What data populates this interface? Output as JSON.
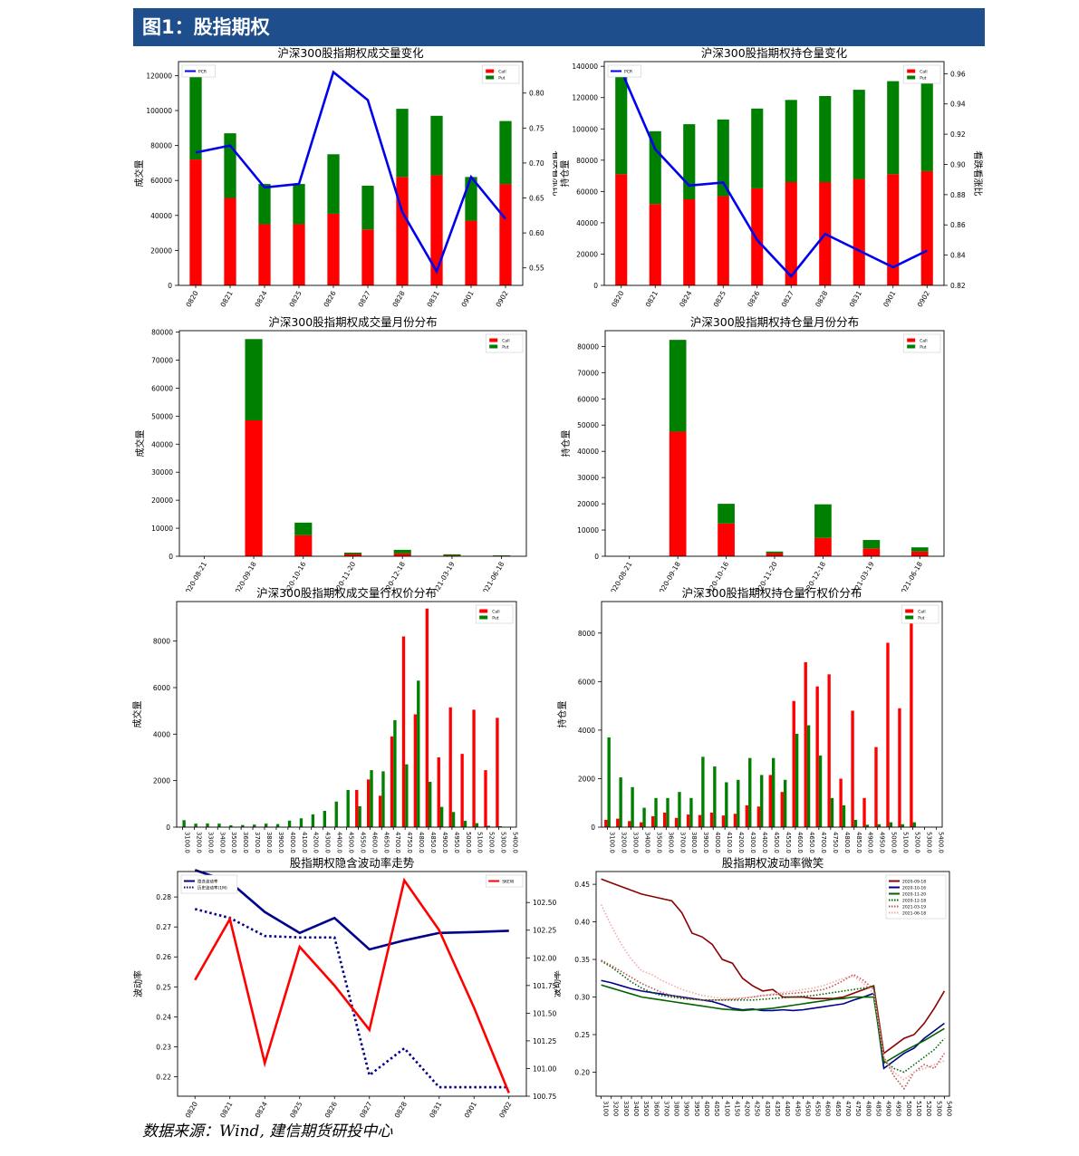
{
  "page": {
    "figure_title": "图1：股指期权",
    "source_note": "数据来源：Wind, 建信期货研投中心"
  },
  "colors": {
    "call": "#ff0000",
    "put": "#008000",
    "ratio": "#0000ee",
    "header_bg": "#1f4e8c"
  },
  "chart_data": [
    {
      "id": "volume_daily",
      "type": "bar",
      "stacked": true,
      "title": "沪深300股指期权成交量变化",
      "ylabel": "成交量",
      "y2label": "看跌看涨比",
      "categories": [
        "0820",
        "0821",
        "0824",
        "0825",
        "0826",
        "0827",
        "0828",
        "0831",
        "0901",
        "0902"
      ],
      "series": [
        {
          "name": "Call",
          "values": [
            72000,
            50000,
            35000,
            35000,
            41000,
            32000,
            62000,
            63000,
            37000,
            58000
          ]
        },
        {
          "name": "Put",
          "values": [
            51000,
            37000,
            23000,
            23000,
            34000,
            25000,
            39000,
            34000,
            25000,
            36000
          ]
        }
      ],
      "line": {
        "name": "PCR",
        "values": [
          0.715,
          0.725,
          0.665,
          0.67,
          0.83,
          0.79,
          0.63,
          0.545,
          0.68,
          0.62
        ]
      },
      "ylim": [
        0,
        128000
      ],
      "yticks": [
        0,
        20000,
        40000,
        60000,
        80000,
        100000,
        120000
      ],
      "y2lim": [
        0.525,
        0.845
      ],
      "y2ticks": [
        0.55,
        0.6,
        0.65,
        0.7,
        0.75,
        0.8
      ],
      "y2ticklabels": [
        "0.55",
        "0.60",
        "0.65",
        "0.70",
        "0.75",
        "0.80"
      ],
      "legend_left": [
        "PCR"
      ],
      "legend_right": [
        "Call",
        "Put"
      ]
    },
    {
      "id": "oi_daily",
      "type": "bar",
      "stacked": true,
      "title": "沪深300股指期权持仓量变化",
      "ylabel": "持仓量",
      "y2label": "看跌看涨比",
      "categories": [
        "0820",
        "0821",
        "0824",
        "0825",
        "0826",
        "0827",
        "0828",
        "0831",
        "0901",
        "0902"
      ],
      "series": [
        {
          "name": "Call",
          "values": [
            71000,
            52000,
            55000,
            57000,
            62000,
            66000,
            66000,
            68000,
            71000,
            73000
          ]
        },
        {
          "name": "Put",
          "values": [
            68000,
            46500,
            48000,
            49000,
            51000,
            52500,
            55000,
            57000,
            59500,
            60500
          ]
        }
      ],
      "line": {
        "name": "PCR",
        "values": [
          0.962,
          0.91,
          0.886,
          0.888,
          0.85,
          0.826,
          0.854,
          0.843,
          0.832,
          0.843
        ]
      },
      "ylim": [
        0,
        143000
      ],
      "yticks": [
        0,
        20000,
        40000,
        60000,
        80000,
        100000,
        120000,
        140000
      ],
      "y2lim": [
        0.82,
        0.968
      ],
      "y2ticks": [
        0.82,
        0.84,
        0.86,
        0.88,
        0.9,
        0.92,
        0.94,
        0.96
      ],
      "y2ticklabels": [
        "0.82",
        "0.84",
        "0.86",
        "0.88",
        "0.90",
        "0.92",
        "0.94",
        "0.96"
      ],
      "legend_left": [
        "PCR"
      ],
      "legend_right": [
        "Call",
        "Put"
      ]
    },
    {
      "id": "volume_monthly",
      "type": "bar",
      "stacked": true,
      "title": "沪深300股指期权成交量月份分布",
      "ylabel": "成交量",
      "categories": [
        "2020-08-21",
        "2020-09-18",
        "2020-10-16",
        "2020-11-20",
        "2020-12-18",
        "2021-03-19",
        "2021-06-18"
      ],
      "series": [
        {
          "name": "Call",
          "values": [
            0,
            48500,
            7500,
            800,
            1000,
            300,
            150
          ]
        },
        {
          "name": "Put",
          "values": [
            0,
            29000,
            4500,
            500,
            1300,
            400,
            150
          ]
        }
      ],
      "ylim": [
        0,
        80500
      ],
      "yticks": [
        0,
        10000,
        20000,
        30000,
        40000,
        50000,
        60000,
        70000,
        80000
      ],
      "legend_right": [
        "Call",
        "Put"
      ]
    },
    {
      "id": "oi_monthly",
      "type": "bar",
      "stacked": true,
      "title": "沪深300股指期权持仓量月份分布",
      "ylabel": "持仓量",
      "categories": [
        "2020-08-21",
        "2020-09-18",
        "2020-10-16",
        "2020-11-20",
        "2020-12-18",
        "2021-03-19",
        "2021-06-18"
      ],
      "series": [
        {
          "name": "Call",
          "values": [
            0,
            47500,
            12500,
            1200,
            7000,
            3000,
            1800
          ]
        },
        {
          "name": "Put",
          "values": [
            0,
            35000,
            7500,
            600,
            12800,
            3200,
            1600
          ]
        }
      ],
      "ylim": [
        0,
        86000
      ],
      "yticks": [
        0,
        10000,
        20000,
        30000,
        40000,
        50000,
        60000,
        70000,
        80000
      ],
      "legend_right": [
        "Call",
        "Put"
      ]
    },
    {
      "id": "volume_strike",
      "type": "bar",
      "stacked": false,
      "title": "沪深300股指期权成交量行权价分布",
      "ylabel": "成交量",
      "categories": [
        "3100.0",
        "3200.0",
        "3300.0",
        "3400.0",
        "3500.0",
        "3600.0",
        "3700.0",
        "3800.0",
        "3900.0",
        "4000.0",
        "4100.0",
        "4200.0",
        "4300.0",
        "4400.0",
        "4500.0",
        "4550.0",
        "4600.0",
        "4650.0",
        "4700.0",
        "4750.0",
        "4800.0",
        "4850.0",
        "4900.0",
        "4950.0",
        "5000.0",
        "5100.0",
        "5200.0",
        "5300.0",
        "5400.0"
      ],
      "series": [
        {
          "name": "Call",
          "values": [
            0,
            0,
            0,
            0,
            0,
            0,
            0,
            0,
            0,
            0,
            0,
            0,
            0,
            0,
            0,
            1600,
            2050,
            1350,
            3900,
            8200,
            4850,
            9400,
            3000,
            5150,
            3150,
            5050,
            2450,
            4700,
            0
          ]
        },
        {
          "name": "Put",
          "values": [
            300,
            150,
            160,
            150,
            80,
            90,
            110,
            150,
            130,
            280,
            380,
            550,
            700,
            1100,
            1600,
            900,
            2450,
            2400,
            4600,
            2700,
            6300,
            1950,
            870,
            650,
            270,
            170,
            60,
            40,
            0
          ]
        }
      ],
      "ylim": [
        0,
        9700
      ],
      "yticks": [
        0,
        2000,
        4000,
        6000,
        8000
      ],
      "legend_right": [
        "Call",
        "Put"
      ]
    },
    {
      "id": "oi_strike",
      "type": "bar",
      "stacked": false,
      "title": "沪深300股指期权持仓量行权价分布",
      "ylabel": "持仓量",
      "categories": [
        "3100.0",
        "3200.0",
        "3300.0",
        "3400.0",
        "3500.0",
        "3600.0",
        "3700.0",
        "3800.0",
        "3900.0",
        "4000.0",
        "4100.0",
        "4200.0",
        "4300.0",
        "4400.0",
        "4500.0",
        "4550.0",
        "4600.0",
        "4650.0",
        "4700.0",
        "4750.0",
        "4800.0",
        "4850.0",
        "4900.0",
        "4950.0",
        "5000.0",
        "5100.0",
        "5200.0",
        "5300.0",
        "5400.0"
      ],
      "series": [
        {
          "name": "Call",
          "values": [
            300,
            350,
            250,
            200,
            450,
            600,
            380,
            520,
            500,
            600,
            480,
            550,
            900,
            850,
            2150,
            1450,
            5200,
            6800,
            5800,
            6300,
            2000,
            4800,
            1200,
            3300,
            7600,
            4900,
            8800,
            0,
            0
          ]
        },
        {
          "name": "Put",
          "values": [
            3700,
            2050,
            1650,
            800,
            1200,
            1200,
            1450,
            1200,
            2900,
            2500,
            1850,
            1950,
            2850,
            2150,
            2850,
            1950,
            3850,
            4200,
            2950,
            1200,
            900,
            300,
            100,
            120,
            200,
            120,
            200,
            0,
            0
          ]
        }
      ],
      "ylim": [
        0,
        9300
      ],
      "yticks": [
        0,
        2000,
        4000,
        6000,
        8000
      ],
      "legend_right": [
        "Call",
        "Put"
      ]
    },
    {
      "id": "iv_trend",
      "type": "line",
      "title": "股指期权隐含波动率走势",
      "ylabel": "波动率",
      "y2label": "偏度",
      "categories": [
        "0820",
        "0821",
        "0824",
        "0825",
        "0826",
        "0827",
        "0828",
        "0831",
        "0901",
        "0902"
      ],
      "series": [
        {
          "name": "隐含波动率",
          "axis": "left",
          "style": "solid",
          "color": "#00008b",
          "values": [
            0.289,
            0.285,
            0.275,
            0.268,
            0.273,
            0.2625,
            0.2655,
            0.268,
            0.2683,
            0.2687
          ]
        },
        {
          "name": "历史波动率(1M)",
          "axis": "left",
          "style": "dotted",
          "color": "#00008b",
          "values": [
            0.276,
            0.273,
            0.267,
            0.2665,
            0.2665,
            0.2205,
            0.2295,
            0.2165,
            0.2165,
            0.2165
          ]
        },
        {
          "name": "SKEW",
          "axis": "right",
          "style": "solid",
          "color": "#ff0000",
          "values": [
            101.8,
            102.35,
            101.05,
            102.1,
            101.75,
            101.35,
            102.7,
            102.25,
            101.55,
            100.78
          ]
        }
      ],
      "ylim": [
        0.2135,
        0.2885
      ],
      "yticks": [
        0.22,
        0.23,
        0.24,
        0.25,
        0.26,
        0.27,
        0.28
      ],
      "y2lim": [
        100.75,
        102.78
      ],
      "y2ticks": [
        100.75,
        101.0,
        101.25,
        101.5,
        101.75,
        102.0,
        102.25,
        102.5
      ],
      "y2ticklabels": [
        "100.75",
        "101.00",
        "101.25",
        "101.50",
        "101.75",
        "102.00",
        "102.25",
        "102.50"
      ],
      "legend_left": [
        "隐含波动率",
        "历史波动率(1M)"
      ],
      "legend_right": [
        "SKEW"
      ]
    },
    {
      "id": "vol_smile",
      "type": "line",
      "title": "股指期权波动率微笑",
      "ylabel": "波动率",
      "categories": [
        "3100",
        "3200",
        "3300",
        "3400",
        "3500",
        "3600",
        "3700",
        "3800",
        "3900",
        "3950",
        "4000",
        "4050",
        "4100",
        "4150",
        "4200",
        "4250",
        "4300",
        "4350",
        "4400",
        "4450",
        "4500",
        "4550",
        "4600",
        "4650",
        "4700",
        "4750",
        "4800",
        "4850",
        "4900",
        "4950",
        "5000",
        "5100",
        "5200",
        "5300",
        "5400"
      ],
      "series": [
        {
          "name": "2020-09-18",
          "style": "solid",
          "color": "#8b0000",
          "values": [
            0.457,
            0.452,
            0.447,
            0.442,
            0.437,
            0.434,
            0.431,
            0.428,
            0.412,
            0.385,
            0.38,
            0.37,
            0.35,
            0.345,
            0.325,
            0.315,
            0.308,
            0.31,
            0.3,
            0.3,
            0.3,
            0.298,
            0.298,
            0.298,
            0.3,
            0.305,
            0.31,
            0.315,
            0.225,
            0.235,
            0.245,
            0.25,
            0.265,
            0.285,
            0.308
          ]
        },
        {
          "name": "2020-10-16",
          "style": "solid",
          "color": "#00008b",
          "values": [
            0.322,
            0.319,
            0.315,
            0.311,
            0.308,
            0.306,
            0.304,
            0.302,
            0.3,
            0.298,
            0.296,
            0.294,
            0.29,
            0.285,
            0.283,
            0.284,
            0.282,
            0.282,
            0.283,
            0.282,
            0.283,
            0.285,
            0.287,
            0.289,
            0.291,
            0.296,
            0.3,
            0.305,
            0.205,
            0.215,
            0.225,
            0.232,
            0.245,
            0.255,
            0.265
          ]
        },
        {
          "name": "2020-11-20",
          "style": "solid",
          "color": "#006400",
          "values": [
            0.316,
            0.312,
            0.308,
            0.304,
            0.3,
            0.298,
            0.296,
            0.294,
            0.292,
            0.29,
            0.288,
            0.286,
            0.284,
            0.283,
            0.282,
            0.283,
            0.284,
            0.285,
            0.287,
            0.289,
            0.291,
            0.293,
            0.295,
            0.297,
            0.298,
            0.3,
            0.3,
            0.3,
            0.212,
            0.22,
            0.228,
            0.235,
            0.242,
            0.25,
            0.258
          ]
        },
        {
          "name": "2020-12-18",
          "style": "dotted",
          "color": "#006400",
          "values": [
            0.348,
            0.34,
            0.33,
            0.32,
            0.312,
            0.306,
            0.302,
            0.3,
            0.298,
            0.297,
            0.296,
            0.296,
            0.296,
            0.296,
            0.296,
            0.296,
            0.297,
            0.298,
            0.299,
            0.3,
            0.301,
            0.302,
            0.304,
            0.306,
            0.308,
            0.31,
            0.312,
            0.314,
            0.215,
            0.205,
            0.2,
            0.21,
            0.22,
            0.23,
            0.245
          ]
        },
        {
          "name": "2021-03-19",
          "style": "dotted",
          "color": "#c0504d",
          "values": [
            0.349,
            0.342,
            0.334,
            0.326,
            0.318,
            0.312,
            0.306,
            0.302,
            0.299,
            0.297,
            0.296,
            0.296,
            0.296,
            0.297,
            0.298,
            0.3,
            0.302,
            0.303,
            0.304,
            0.305,
            0.306,
            0.308,
            0.31,
            0.315,
            0.322,
            0.33,
            0.322,
            0.31,
            0.22,
            0.195,
            0.178,
            0.2,
            0.21,
            0.205,
            0.225
          ]
        },
        {
          "name": "2021-06-18",
          "style": "dotted",
          "color": "#f4a9a8",
          "values": [
            0.423,
            0.395,
            0.37,
            0.35,
            0.335,
            0.33,
            0.322,
            0.316,
            0.31,
            0.306,
            0.302,
            0.3,
            0.298,
            0.298,
            0.299,
            0.3,
            0.302,
            0.304,
            0.306,
            0.308,
            0.31,
            0.312,
            0.315,
            0.32,
            0.325,
            0.328,
            0.318,
            0.305,
            0.22,
            0.2,
            0.19,
            0.2,
            0.205,
            0.21,
            0.215
          ]
        }
      ],
      "ylim": [
        0.168,
        0.467
      ],
      "yticks": [
        0.2,
        0.25,
        0.3,
        0.35,
        0.4,
        0.45
      ],
      "yticklabels": [
        "0.20",
        "0.25",
        "0.30",
        "0.35",
        "0.40",
        "0.45"
      ],
      "legend_right": [
        "2020-09-18",
        "2020-10-16",
        "2020-11-20",
        "2020-12-18",
        "2021-03-19",
        "2021-06-18"
      ]
    }
  ]
}
